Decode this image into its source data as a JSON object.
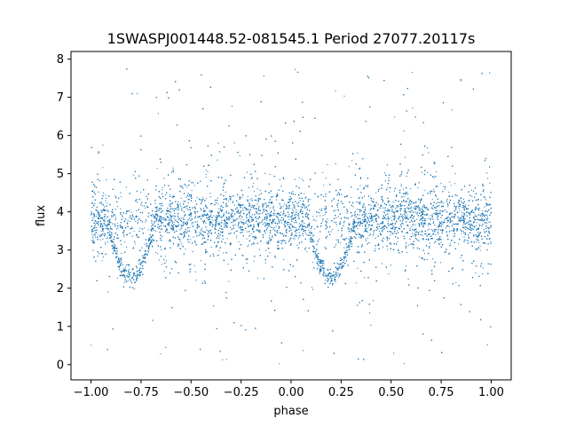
{
  "chart_data": {
    "type": "scatter",
    "title": "1SWASPJ001448.52-081545.1 Period 27077.20117s",
    "xlabel": "phase",
    "ylabel": "flux",
    "xlim": [
      -1.1,
      1.1
    ],
    "ylim": [
      -0.4,
      8.2
    ],
    "xticks": [
      -1.0,
      -0.75,
      -0.5,
      -0.25,
      0.0,
      0.25,
      0.5,
      0.75,
      1.0
    ],
    "xtick_labels": [
      "−1.00",
      "−0.75",
      "−0.50",
      "−0.25",
      "0.00",
      "0.25",
      "0.50",
      "0.75",
      "1.00"
    ],
    "yticks": [
      0,
      1,
      2,
      3,
      4,
      5,
      6,
      7,
      8
    ],
    "ytick_labels": [
      "0",
      "1",
      "2",
      "3",
      "4",
      "5",
      "6",
      "7",
      "8"
    ],
    "grid": false,
    "marker_color": "#1f77b4",
    "series": [
      {
        "x_range": [
          -1.0,
          1.0
        ],
        "baseline_flux": 3.8,
        "core_spread": 0.35,
        "outlier_range": [
          0.0,
          7.75
        ],
        "eclipse_centers": [
          -0.8,
          0.2
        ],
        "eclipse_halfwidth": 0.12,
        "eclipse_min_flux": 2.3
      }
    ]
  }
}
